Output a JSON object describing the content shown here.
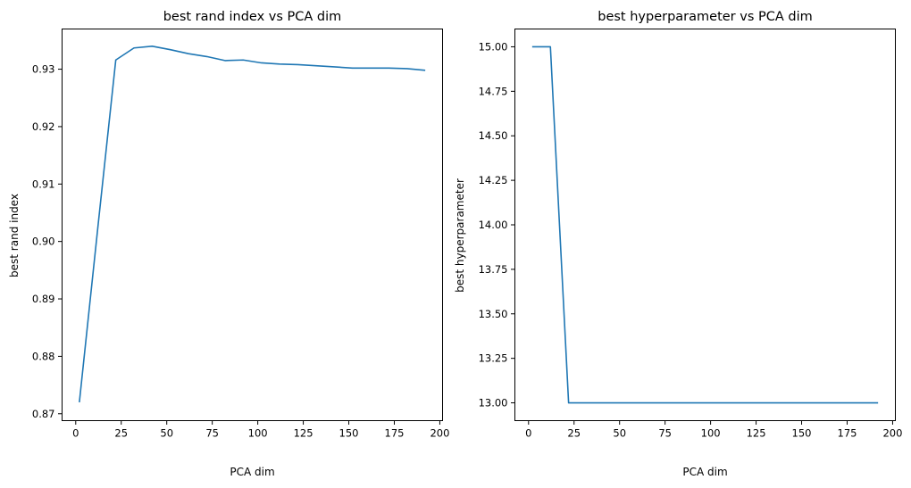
{
  "chart_data": [
    {
      "type": "line",
      "title": "best rand index vs PCA dim",
      "xlabel": "PCA dim",
      "ylabel": "best rand index",
      "xlim": [
        -7.5,
        201.5
      ],
      "ylim": [
        0.8688,
        0.937
      ],
      "xticks": [
        0,
        25,
        50,
        75,
        100,
        125,
        150,
        175,
        200
      ],
      "xtick_labels": [
        "0",
        "25",
        "50",
        "75",
        "100",
        "125",
        "150",
        "175",
        "200"
      ],
      "yticks": [
        0.87,
        0.88,
        0.89,
        0.9,
        0.91,
        0.92,
        0.93
      ],
      "ytick_labels": [
        "0.87",
        "0.88",
        "0.89",
        "0.90",
        "0.91",
        "0.92",
        "0.93"
      ],
      "grid": false,
      "color": "#1f77b4",
      "series": [
        {
          "x": [
            2,
            12,
            22,
            32,
            42,
            52,
            62,
            72,
            82,
            92,
            102,
            112,
            122,
            132,
            142,
            152,
            162,
            172,
            182,
            192
          ],
          "y": [
            0.872,
            0.902,
            0.9316,
            0.9337,
            0.934,
            0.9334,
            0.9327,
            0.9322,
            0.9315,
            0.9316,
            0.9311,
            0.9309,
            0.9308,
            0.9306,
            0.9304,
            0.9302,
            0.9302,
            0.9302,
            0.9301,
            0.9298
          ]
        }
      ]
    },
    {
      "type": "line",
      "title": "best hyperparameter vs PCA dim",
      "xlabel": "PCA dim",
      "ylabel": "best hyperparameter",
      "xlim": [
        -7.5,
        201.5
      ],
      "ylim": [
        12.9,
        15.1
      ],
      "xticks": [
        0,
        25,
        50,
        75,
        100,
        125,
        150,
        175,
        200
      ],
      "xtick_labels": [
        "0",
        "25",
        "50",
        "75",
        "100",
        "125",
        "150",
        "175",
        "200"
      ],
      "yticks": [
        13.0,
        13.25,
        13.5,
        13.75,
        14.0,
        14.25,
        14.5,
        14.75,
        15.0
      ],
      "ytick_labels": [
        "13.00",
        "13.25",
        "13.50",
        "13.75",
        "14.00",
        "14.25",
        "14.50",
        "14.75",
        "15.00"
      ],
      "grid": false,
      "color": "#1f77b4",
      "series": [
        {
          "x": [
            2,
            12,
            22,
            32,
            42,
            52,
            62,
            72,
            82,
            92,
            102,
            112,
            122,
            132,
            142,
            152,
            162,
            172,
            182,
            192
          ],
          "y": [
            15,
            15,
            13,
            13,
            13,
            13,
            13,
            13,
            13,
            13,
            13,
            13,
            13,
            13,
            13,
            13,
            13,
            13,
            13,
            13
          ]
        }
      ]
    }
  ]
}
